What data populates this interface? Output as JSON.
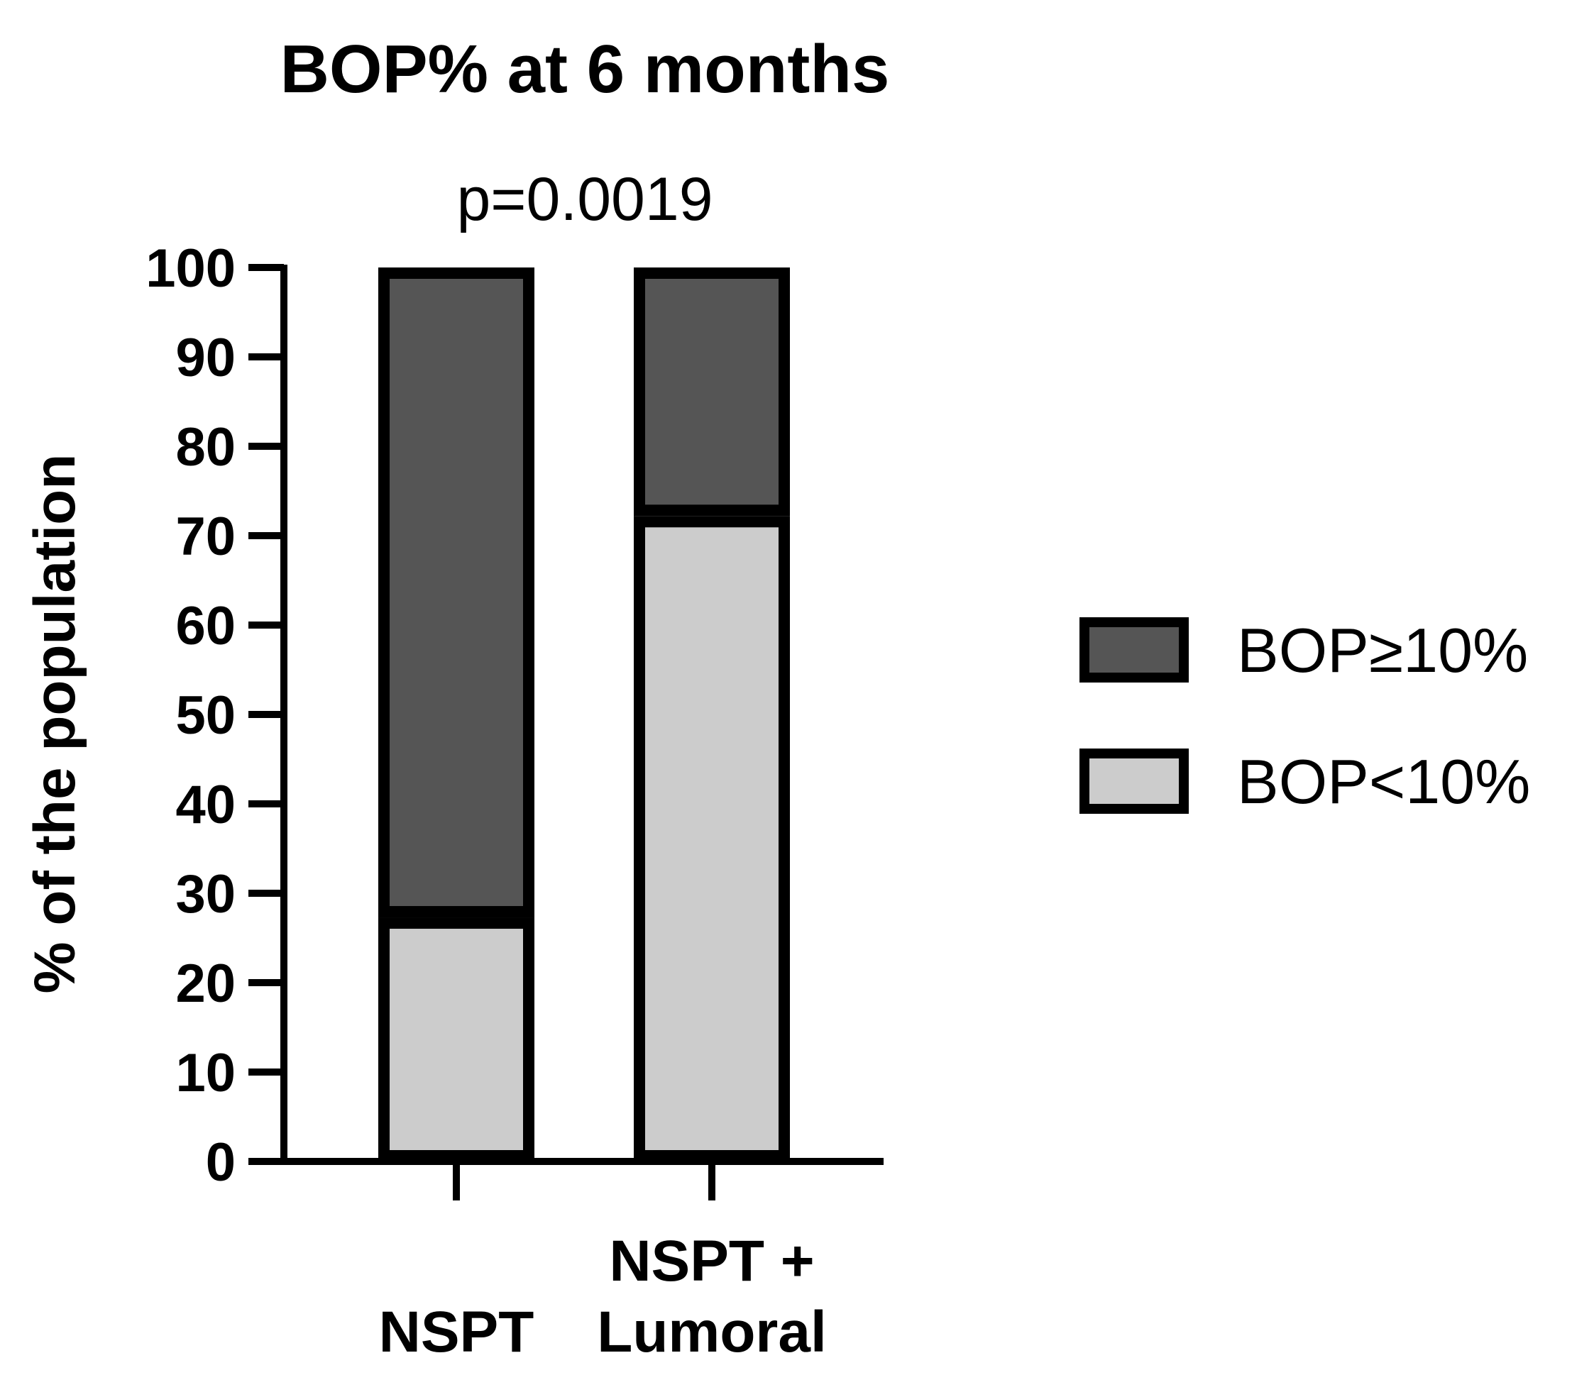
{
  "chart_data": {
    "type": "bar",
    "stacked": true,
    "title": "BOP% at 6 months",
    "annotation": "p=0.0019",
    "ylabel": "% of the population",
    "xlabel": "",
    "ylim": [
      0,
      100
    ],
    "yticks": [
      "0",
      "10",
      "20",
      "30",
      "40",
      "50",
      "60",
      "70",
      "80",
      "90",
      "100"
    ],
    "categories": [
      {
        "lines": [
          "NSPT"
        ]
      },
      {
        "lines": [
          "NSPT +",
          "Lumoral"
        ]
      }
    ],
    "series": [
      {
        "name": "BOP<10%",
        "values": [
          27.3,
          72.2
        ],
        "color": "#cccccc"
      },
      {
        "name": "BOP≥10%",
        "values": [
          72.7,
          27.8
        ],
        "color": "#555555"
      }
    ],
    "legend": {
      "position": "right",
      "items": [
        {
          "label": "BOP≥10%",
          "color": "#555555"
        },
        {
          "label": "BOP<10%",
          "color": "#cccccc"
        }
      ]
    },
    "grid": false,
    "edge_color": "#000000"
  }
}
